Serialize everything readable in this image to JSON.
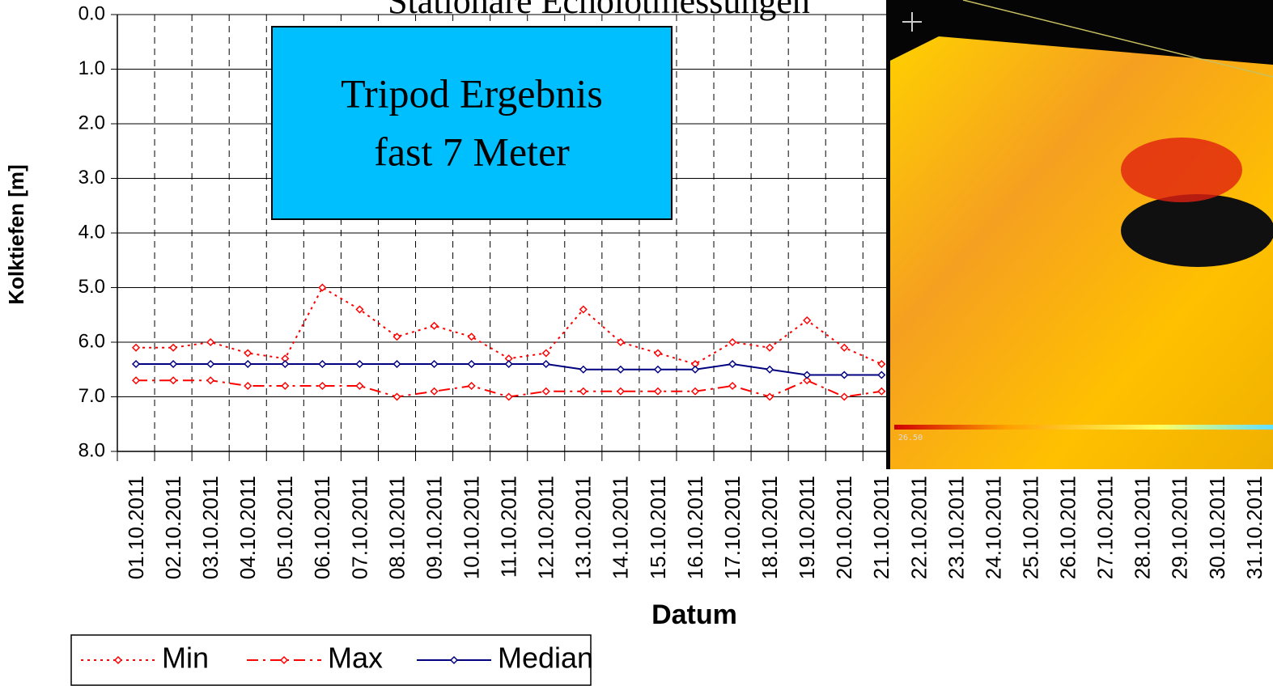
{
  "chart_data": {
    "type": "line",
    "title": "Stationäre Echolotmessungen",
    "annotation": [
      "Tripod Ergebnis",
      "fast 7 Meter"
    ],
    "x_label": "Datum",
    "y_label": "Kolktiefen [m]",
    "categories": [
      "01.10.2011",
      "02.10.2011",
      "03.10.2011",
      "04.10.2011",
      "05.10.2011",
      "06.10.2011",
      "07.10.2011",
      "08.10.2011",
      "09.10.2011",
      "10.10.2011",
      "11.10.2011",
      "12.10.2011",
      "13.10.2011",
      "14.10.2011",
      "15.10.2011",
      "16.10.2011",
      "17.10.2011",
      "18.10.2011",
      "19.10.2011",
      "20.10.2011",
      "21.10.2011",
      "22.10.2011",
      "23.10.2011",
      "24.10.2011",
      "25.10.2011",
      "26.10.2011",
      "27.10.2011",
      "28.10.2011",
      "29.10.2011",
      "30.10.2011",
      "31.10.2011"
    ],
    "series": [
      {
        "name": "Min",
        "color": "#ff0000",
        "dash": "dotted",
        "values": [
          6.1,
          6.1,
          6.0,
          6.2,
          6.3,
          5.0,
          5.4,
          5.9,
          5.7,
          5.9,
          6.3,
          6.2,
          5.4,
          6.0,
          6.2,
          6.4,
          6.0,
          6.1,
          5.6,
          6.1,
          6.4,
          null,
          null,
          null,
          null,
          null,
          null,
          null,
          null,
          null,
          null
        ]
      },
      {
        "name": "Max",
        "color": "#ff0000",
        "dash": "dashdot",
        "values": [
          6.7,
          6.7,
          6.7,
          6.8,
          6.8,
          6.8,
          6.8,
          7.0,
          6.9,
          6.8,
          7.0,
          6.9,
          6.9,
          6.9,
          6.9,
          6.9,
          6.8,
          7.0,
          6.7,
          7.0,
          6.9,
          null,
          null,
          null,
          null,
          null,
          null,
          null,
          null,
          null,
          null
        ]
      },
      {
        "name": "Median",
        "color": "#000080",
        "dash": "solid",
        "values": [
          6.4,
          6.4,
          6.4,
          6.4,
          6.4,
          6.4,
          6.4,
          6.4,
          6.4,
          6.4,
          6.4,
          6.4,
          6.5,
          6.5,
          6.5,
          6.5,
          6.4,
          6.5,
          6.6,
          6.6,
          6.6,
          null,
          null,
          null,
          null,
          null,
          null,
          null,
          null,
          null,
          null
        ]
      }
    ],
    "ylim": [
      0,
      8
    ],
    "y_reversed": true,
    "yticks": [
      {
        "value": 0,
        "label": "0.0"
      },
      {
        "value": 1,
        "label": "1.0"
      },
      {
        "value": 2,
        "label": "2.0"
      },
      {
        "value": 3,
        "label": "3.0"
      },
      {
        "value": 4,
        "label": "4.0"
      },
      {
        "value": 5,
        "label": "5.0"
      },
      {
        "value": 6,
        "label": "6.0"
      },
      {
        "value": 7,
        "label": "7.0"
      },
      {
        "value": 8,
        "label": "8.0"
      }
    ],
    "grid": true,
    "legend": "bottom-left"
  },
  "image": {
    "scale_label": "26.50"
  }
}
